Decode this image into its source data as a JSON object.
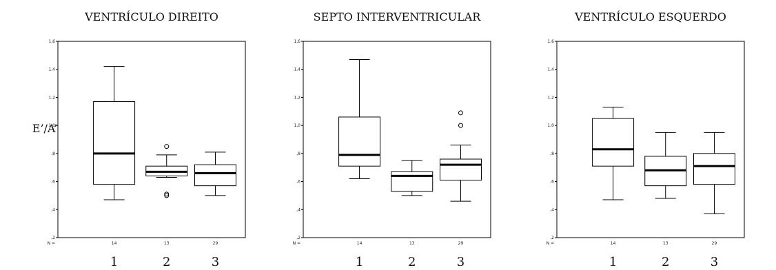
{
  "y_axis_label": "E’/A’",
  "n_label": "N =",
  "chart_data": [
    {
      "type": "boxplot",
      "title": "VENTRÍCULO DIREITO",
      "ylim": [
        0.2,
        1.6
      ],
      "yticks": [
        ",2",
        ",4",
        ",6",
        ",8",
        "1,0",
        "1,2",
        "1,4",
        "1,6"
      ],
      "categories": [
        "1",
        "2",
        "3"
      ],
      "n": [
        "14",
        "13",
        "29"
      ],
      "boxes": [
        {
          "whisker_low": 0.47,
          "q1": 0.58,
          "median": 0.8,
          "q3": 1.17,
          "whisker_high": 1.42,
          "outliers": []
        },
        {
          "whisker_low": 0.63,
          "q1": 0.64,
          "median": 0.67,
          "q3": 0.71,
          "whisker_high": 0.79,
          "outliers": [
            0.85,
            0.5,
            0.51
          ]
        },
        {
          "whisker_low": 0.5,
          "q1": 0.57,
          "median": 0.66,
          "q3": 0.72,
          "whisker_high": 0.81,
          "outliers": []
        }
      ]
    },
    {
      "type": "boxplot",
      "title": "SEPTO INTERVENTRICULAR",
      "ylim": [
        0.2,
        1.6
      ],
      "yticks": [
        ",2",
        ",4",
        ",6",
        ",8",
        "1,0",
        "1,2",
        "1,4",
        "1,6"
      ],
      "categories": [
        "1",
        "2",
        "3"
      ],
      "n": [
        "14",
        "13",
        "29"
      ],
      "boxes": [
        {
          "whisker_low": 0.62,
          "q1": 0.71,
          "median": 0.79,
          "q3": 1.06,
          "whisker_high": 1.47,
          "outliers": []
        },
        {
          "whisker_low": 0.5,
          "q1": 0.53,
          "median": 0.64,
          "q3": 0.67,
          "whisker_high": 0.75,
          "outliers": []
        },
        {
          "whisker_low": 0.46,
          "q1": 0.61,
          "median": 0.72,
          "q3": 0.76,
          "whisker_high": 0.86,
          "outliers": [
            1.09,
            1.0
          ]
        }
      ]
    },
    {
      "type": "boxplot",
      "title": "VENTRÍCULO ESQUERDO",
      "ylim": [
        0.2,
        1.6
      ],
      "yticks": [
        ",2",
        ",4",
        ",6",
        ",8",
        "1,0",
        "1,2",
        "1,4",
        "1,6"
      ],
      "categories": [
        "1",
        "2",
        "3"
      ],
      "n": [
        "14",
        "13",
        "29"
      ],
      "boxes": [
        {
          "whisker_low": 0.47,
          "q1": 0.71,
          "median": 0.83,
          "q3": 1.05,
          "whisker_high": 1.13,
          "outliers": []
        },
        {
          "whisker_low": 0.48,
          "q1": 0.57,
          "median": 0.68,
          "q3": 0.78,
          "whisker_high": 0.95,
          "outliers": []
        },
        {
          "whisker_low": 0.37,
          "q1": 0.58,
          "median": 0.71,
          "q3": 0.8,
          "whisker_high": 0.95,
          "outliers": []
        }
      ]
    }
  ]
}
